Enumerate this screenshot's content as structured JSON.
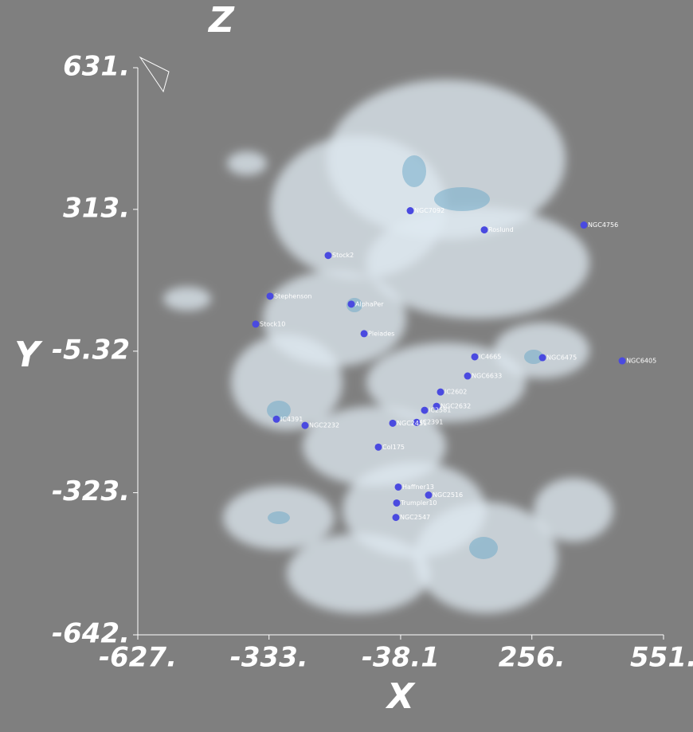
{
  "chart_data": {
    "type": "scatter",
    "xlabel": "X",
    "ylabel": "Y",
    "zlabel": "Z",
    "labels": [
      "NGC7092",
      "Roslund",
      "NGC4756",
      "Stock2",
      "Stephenson",
      "Stock10",
      "AlphaPer",
      "Pleiades",
      "NGC6475",
      "NGC6405",
      "IC4665",
      "NGC6633",
      "IC2602",
      "NGC2632",
      "IC2581",
      "IC2391",
      "NGC2451",
      "IC4391",
      "NGC2232",
      "Col175",
      "Haffner13",
      "NGC2516",
      "Trumpler10",
      "NGC2547"
    ],
    "x": [
      -16.5,
      149.5,
      372.6,
      -200.4,
      -330.7,
      -362.8,
      -148.6,
      -120,
      279.8,
      458.3,
      128,
      112,
      51.3,
      42.4,
      15.6,
      -2.3,
      -55.8,
      -316.4,
      -252.2,
      -87.9,
      -43.3,
      24.5,
      -47,
      -48.7
    ],
    "values": [
      310,
      267,
      277.8,
      209.6,
      118.2,
      55.5,
      100.3,
      34,
      -19.9,
      -27,
      -18,
      -61,
      -97,
      -129,
      -138,
      -165,
      -167,
      -158,
      -172,
      -220.7,
      -310.3,
      -328.3,
      -346,
      -378.5
    ],
    "color": "#4a4ae0",
    "xlim": [
      -627,
      551
    ],
    "ylim": [
      -642,
      631
    ],
    "xticks": [
      {
        "value": -627,
        "label": "-627."
      },
      {
        "value": -333,
        "label": "-333."
      },
      {
        "value": -38.1,
        "label": "-38.1"
      },
      {
        "value": 256,
        "label": "256."
      },
      {
        "value": 551,
        "label": "551."
      }
    ],
    "yticks": [
      {
        "value": 631,
        "label": "631."
      },
      {
        "value": 313,
        "label": "313."
      },
      {
        "value": -5.32,
        "label": "-5.32"
      },
      {
        "value": -323,
        "label": "-323."
      },
      {
        "value": -642,
        "label": "-642."
      }
    ]
  }
}
